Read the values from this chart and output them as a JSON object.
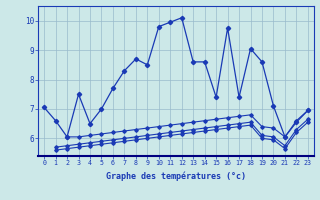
{
  "xlabel": "Graphe des températures (°c)",
  "bg_color": "#cce8e8",
  "line_color": "#1a3ab5",
  "grid_color": "#99bbcc",
  "xlim": [
    -0.5,
    23.5
  ],
  "ylim": [
    5.4,
    10.5
  ],
  "yticks": [
    6,
    7,
    8,
    9,
    10
  ],
  "xticks": [
    0,
    1,
    2,
    3,
    4,
    5,
    6,
    7,
    8,
    9,
    10,
    11,
    12,
    13,
    14,
    15,
    16,
    17,
    18,
    19,
    20,
    21,
    22,
    23
  ],
  "main_x": [
    0,
    1,
    2,
    3,
    4,
    5,
    6,
    7,
    8,
    9,
    10,
    11,
    12,
    13,
    14,
    15,
    16,
    17,
    18,
    19,
    20,
    21,
    22,
    23
  ],
  "main_y": [
    7.05,
    6.6,
    6.05,
    7.5,
    6.5,
    7.0,
    7.7,
    8.3,
    8.7,
    8.5,
    9.8,
    9.95,
    10.1,
    8.6,
    8.6,
    7.4,
    9.75,
    7.4,
    9.05,
    8.6,
    7.1,
    6.05,
    6.55,
    6.95
  ],
  "line2_x": [
    2,
    3,
    4,
    5,
    6,
    7,
    8,
    9,
    10,
    11,
    12,
    13,
    14,
    15,
    16,
    17,
    18,
    19,
    20,
    21,
    22,
    23
  ],
  "line2_y": [
    6.05,
    6.05,
    6.1,
    6.15,
    6.2,
    6.25,
    6.3,
    6.35,
    6.4,
    6.45,
    6.5,
    6.55,
    6.6,
    6.65,
    6.7,
    6.75,
    6.8,
    6.4,
    6.35,
    6.05,
    6.6,
    6.95
  ],
  "line3_x": [
    1,
    2,
    3,
    4,
    5,
    6,
    7,
    8,
    9,
    10,
    11,
    12,
    13,
    14,
    15,
    16,
    17,
    18,
    19,
    20,
    21,
    22,
    23
  ],
  "line3_y": [
    5.7,
    5.75,
    5.8,
    5.85,
    5.9,
    5.95,
    6.0,
    6.05,
    6.1,
    6.15,
    6.2,
    6.25,
    6.3,
    6.35,
    6.4,
    6.45,
    6.5,
    6.55,
    6.1,
    6.05,
    5.75,
    6.3,
    6.65
  ],
  "line4_x": [
    1,
    2,
    3,
    4,
    5,
    6,
    7,
    8,
    9,
    10,
    11,
    12,
    13,
    14,
    15,
    16,
    17,
    18,
    19,
    20,
    21,
    22,
    23
  ],
  "line4_y": [
    5.6,
    5.65,
    5.7,
    5.75,
    5.8,
    5.85,
    5.9,
    5.95,
    6.0,
    6.05,
    6.1,
    6.15,
    6.2,
    6.25,
    6.3,
    6.35,
    6.4,
    6.45,
    6.0,
    5.95,
    5.65,
    6.2,
    6.55
  ]
}
